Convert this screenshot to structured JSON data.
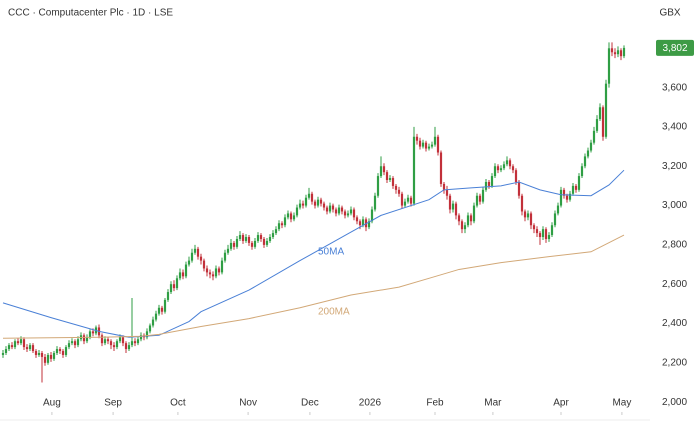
{
  "chart_data": {
    "type": "candlestick",
    "title": "CCC · Computacenter Plc · 1D · LSE",
    "currency": "GBX",
    "xlim": [
      -1,
      215
    ],
    "xticks": [
      {
        "value": 16.3,
        "label": "Aug"
      },
      {
        "value": 36.7,
        "label": "Sep"
      },
      {
        "value": 58.3,
        "label": "Oct"
      },
      {
        "value": 81.7,
        "label": "Nov"
      },
      {
        "value": 102.3,
        "label": "Dec"
      },
      {
        "value": 122.3,
        "label": "2026"
      },
      {
        "value": 144,
        "label": "Feb"
      },
      {
        "value": 163.3,
        "label": "Mar"
      },
      {
        "value": 186,
        "label": "Apr"
      },
      {
        "value": 206.3,
        "label": "May"
      }
    ],
    "ylim": [
      1960,
      3944
    ],
    "yticks": [
      {
        "value": 2000,
        "label": "2,000"
      },
      {
        "value": 2200,
        "label": "2,200"
      },
      {
        "value": 2400,
        "label": "2,400"
      },
      {
        "value": 2600,
        "label": "2,600"
      },
      {
        "value": 2800,
        "label": "2,800"
      },
      {
        "value": 3000,
        "label": "3,000"
      },
      {
        "value": 3200,
        "label": "3,200"
      },
      {
        "value": 3400,
        "label": "3,400"
      },
      {
        "value": 3600,
        "label": "3,600"
      }
    ],
    "grid": false,
    "up_color": "#2f9e44",
    "down_color": "#c2303a",
    "last_price": {
      "value": 3802,
      "label": "3,802"
    },
    "last_price_color": "#3d9b45",
    "candles": {
      "open": [
        2240,
        2250,
        2270,
        2290,
        2280,
        2310,
        2300,
        2320,
        2280,
        2270,
        2290,
        2260,
        2240,
        2250,
        2230,
        2200,
        2240,
        2220,
        2250,
        2270,
        2260,
        2240,
        2280,
        2300,
        2310,
        2290,
        2320,
        2340,
        2310,
        2330,
        2360,
        2350,
        2380,
        2340,
        2300,
        2320,
        2310,
        2290,
        2280,
        2310,
        2330,
        2300,
        2270,
        2290,
        2310,
        2300,
        2320,
        2340,
        2330,
        2360,
        2390,
        2420,
        2450,
        2480,
        2460,
        2520,
        2560,
        2600,
        2580,
        2630,
        2660,
        2640,
        2700,
        2720,
        2760,
        2780,
        2740,
        2720,
        2680,
        2660,
        2650,
        2640,
        2680,
        2660,
        2720,
        2760,
        2780,
        2810,
        2790,
        2830,
        2850,
        2820,
        2840,
        2810,
        2790,
        2820,
        2850,
        2830,
        2800,
        2820,
        2840,
        2860,
        2880,
        2910,
        2900,
        2940,
        2960,
        2930,
        2950,
        2990,
        3010,
        3000,
        3040,
        3060,
        3020,
        3000,
        3030,
        3010,
        2990,
        2970,
        3000,
        2980,
        2960,
        2990,
        2970,
        2950,
        2960,
        2980,
        2940,
        2920,
        2900,
        2930,
        2890,
        2920,
        2980,
        3050,
        3150,
        3200,
        3170,
        3130,
        3140,
        3100,
        3080,
        3060,
        3000,
        3020,
        3040,
        3010,
        3350,
        3330,
        3300,
        3320,
        3290,
        3300,
        3310,
        3350,
        3270,
        3110,
        3080,
        3050,
        2980,
        3010,
        2950,
        2920,
        2880,
        2900,
        2950,
        2920,
        3000,
        3050,
        3020,
        3080,
        3120,
        3100,
        3150,
        3200,
        3180,
        3190,
        3210,
        3230,
        3200,
        3180,
        3120,
        3050,
        2970,
        2940,
        2960,
        2900,
        2880,
        2860,
        2840,
        2880,
        2830,
        2850,
        2900,
        2960,
        3000,
        3080,
        3050,
        3030,
        3060,
        3100,
        3080,
        3150,
        3200,
        3250,
        3280,
        3320,
        3380,
        3440,
        3500,
        3350,
        3620,
        3800,
        3780,
        3770,
        3790,
        3760
      ],
      "high": [
        2265,
        2285,
        2300,
        2305,
        2320,
        2325,
        2335,
        2330,
        2295,
        2300,
        2300,
        2270,
        2265,
        2260,
        2245,
        2250,
        2255,
        2260,
        2285,
        2280,
        2270,
        2290,
        2315,
        2325,
        2320,
        2335,
        2355,
        2350,
        2345,
        2370,
        2375,
        2390,
        2395,
        2350,
        2335,
        2330,
        2320,
        2305,
        2320,
        2345,
        2340,
        2310,
        2305,
        2530,
        2325,
        2335,
        2355,
        2350,
        2375,
        2400,
        2435,
        2465,
        2495,
        2490,
        2530,
        2575,
        2615,
        2620,
        2645,
        2680,
        2675,
        2715,
        2740,
        2780,
        2800,
        2790,
        2755,
        2730,
        2695,
        2675,
        2665,
        2695,
        2690,
        2735,
        2775,
        2800,
        2830,
        2820,
        2845,
        2870,
        2860,
        2855,
        2850,
        2820,
        2835,
        2865,
        2860,
        2840,
        2835,
        2855,
        2875,
        2895,
        2925,
        2920,
        2955,
        2975,
        2970,
        2965,
        3005,
        3030,
        3025,
        3055,
        3090,
        3070,
        3030,
        3045,
        3040,
        3020,
        3000,
        3015,
        3010,
        2990,
        3005,
        3000,
        2980,
        2975,
        2995,
        2990,
        2950,
        2930,
        2945,
        2940,
        2935,
        2995,
        3065,
        3165,
        3250,
        3215,
        3180,
        3155,
        3150,
        3110,
        3095,
        3070,
        3035,
        3055,
        3050,
        3400,
        3365,
        3345,
        3335,
        3330,
        3315,
        3325,
        3400,
        3360,
        3280,
        3120,
        3100,
        3060,
        3025,
        3020,
        2960,
        2930,
        2915,
        2965,
        2960,
        3015,
        3065,
        3060,
        3095,
        3135,
        3130,
        3165,
        3215,
        3210,
        3205,
        3225,
        3250,
        3240,
        3210,
        3190,
        3130,
        3060,
        2980,
        2975,
        2970,
        2910,
        2895,
        2870,
        2895,
        2890,
        2865,
        2915,
        2975,
        3015,
        3095,
        3090,
        3060,
        3075,
        3115,
        3110,
        3165,
        3215,
        3265,
        3295,
        3335,
        3400,
        3460,
        3520,
        3510,
        3640,
        3830,
        3830,
        3800,
        3810,
        3800,
        3815
      ],
      "low": [
        2225,
        2240,
        2260,
        2270,
        2270,
        2290,
        2290,
        2265,
        2255,
        2260,
        2250,
        2225,
        2230,
        2100,
        2185,
        2190,
        2205,
        2210,
        2240,
        2245,
        2225,
        2230,
        2270,
        2290,
        2275,
        2280,
        2310,
        2295,
        2300,
        2320,
        2335,
        2340,
        2325,
        2285,
        2290,
        2295,
        2270,
        2260,
        2270,
        2300,
        2285,
        2250,
        2260,
        2280,
        2285,
        2290,
        2310,
        2315,
        2320,
        2350,
        2380,
        2410,
        2440,
        2445,
        2450,
        2510,
        2550,
        2565,
        2570,
        2620,
        2625,
        2630,
        2690,
        2710,
        2750,
        2725,
        2700,
        2665,
        2640,
        2630,
        2620,
        2630,
        2645,
        2650,
        2710,
        2750,
        2770,
        2775,
        2780,
        2820,
        2805,
        2810,
        2795,
        2775,
        2780,
        2810,
        2815,
        2785,
        2790,
        2810,
        2830,
        2850,
        2870,
        2885,
        2890,
        2930,
        2915,
        2920,
        2940,
        2980,
        2985,
        2990,
        3030,
        3005,
        2985,
        2990,
        2995,
        2975,
        2955,
        2960,
        2965,
        2945,
        2950,
        2955,
        2935,
        2940,
        2950,
        2925,
        2905,
        2880,
        2890,
        2870,
        2880,
        2910,
        2970,
        3040,
        3140,
        3155,
        3115,
        3120,
        3085,
        3060,
        3045,
        2985,
        2990,
        3010,
        2995,
        3000,
        3310,
        3285,
        3290,
        3275,
        3280,
        3290,
        3300,
        3255,
        3095,
        3060,
        3030,
        2960,
        2965,
        2930,
        2900,
        2860,
        2860,
        2890,
        2900,
        2910,
        2990,
        3005,
        3010,
        3070,
        3085,
        3090,
        3140,
        3165,
        3170,
        3180,
        3200,
        3185,
        3165,
        3105,
        3035,
        2950,
        2920,
        2925,
        2880,
        2860,
        2840,
        2800,
        2825,
        2810,
        2815,
        2840,
        2890,
        2950,
        2990,
        3035,
        3015,
        3020,
        3050,
        3065,
        3070,
        3140,
        3190,
        3240,
        3270,
        3310,
        3370,
        3430,
        3330,
        3340,
        3600,
        3760,
        3750,
        3755,
        3740,
        3750
      ],
      "close": [
        2250,
        2270,
        2290,
        2280,
        2310,
        2300,
        2320,
        2280,
        2270,
        2290,
        2260,
        2240,
        2250,
        2230,
        2200,
        2240,
        2220,
        2250,
        2270,
        2260,
        2240,
        2280,
        2300,
        2310,
        2290,
        2320,
        2340,
        2310,
        2330,
        2360,
        2350,
        2380,
        2340,
        2300,
        2320,
        2310,
        2290,
        2280,
        2310,
        2330,
        2300,
        2270,
        2290,
        2310,
        2300,
        2320,
        2340,
        2330,
        2360,
        2390,
        2420,
        2450,
        2480,
        2460,
        2520,
        2560,
        2600,
        2580,
        2630,
        2660,
        2640,
        2700,
        2720,
        2760,
        2780,
        2740,
        2720,
        2680,
        2660,
        2650,
        2640,
        2680,
        2660,
        2720,
        2760,
        2780,
        2810,
        2790,
        2830,
        2850,
        2820,
        2840,
        2810,
        2790,
        2820,
        2850,
        2830,
        2800,
        2820,
        2840,
        2860,
        2880,
        2910,
        2900,
        2940,
        2960,
        2930,
        2950,
        2990,
        3010,
        3000,
        3040,
        3060,
        3020,
        3000,
        3030,
        3010,
        2990,
        2970,
        3000,
        2980,
        2960,
        2990,
        2970,
        2950,
        2960,
        2980,
        2940,
        2920,
        2900,
        2930,
        2890,
        2920,
        2980,
        3050,
        3150,
        3200,
        3170,
        3130,
        3140,
        3100,
        3080,
        3060,
        3000,
        3020,
        3040,
        3010,
        3350,
        3330,
        3300,
        3320,
        3290,
        3300,
        3310,
        3350,
        3270,
        3110,
        3080,
        3050,
        2980,
        3010,
        2950,
        2920,
        2880,
        2900,
        2950,
        2920,
        3000,
        3050,
        3020,
        3080,
        3120,
        3100,
        3150,
        3200,
        3180,
        3190,
        3210,
        3230,
        3200,
        3180,
        3120,
        3050,
        2970,
        2940,
        2960,
        2900,
        2880,
        2860,
        2840,
        2880,
        2830,
        2850,
        2900,
        2960,
        3000,
        3080,
        3050,
        3030,
        3060,
        3100,
        3080,
        3150,
        3200,
        3250,
        3280,
        3320,
        3380,
        3440,
        3500,
        3350,
        3620,
        3800,
        3780,
        3770,
        3790,
        3760,
        3802
      ]
    },
    "lines": [
      {
        "name": "50MA",
        "color": "#4a80d6",
        "x": [
          0,
          16,
          32,
          42,
          52,
          62,
          66,
          82,
          99,
          116,
          126,
          142,
          147,
          156,
          166,
          172,
          179,
          186,
          196,
          202,
          207
        ],
        "values": [
          2505,
          2430,
          2360,
          2330,
          2340,
          2410,
          2460,
          2570,
          2720,
          2865,
          2950,
          3030,
          3080,
          3090,
          3100,
          3120,
          3080,
          3055,
          3050,
          3105,
          3180
        ]
      },
      {
        "name": "200MA",
        "color": "#d2a877",
        "x": [
          0,
          32,
          46,
          52,
          66,
          82,
          99,
          116,
          132,
          142,
          152,
          166,
          182,
          196,
          207
        ],
        "values": [
          2325,
          2330,
          2335,
          2345,
          2385,
          2425,
          2480,
          2545,
          2585,
          2630,
          2675,
          2710,
          2740,
          2765,
          2850
        ]
      }
    ]
  }
}
